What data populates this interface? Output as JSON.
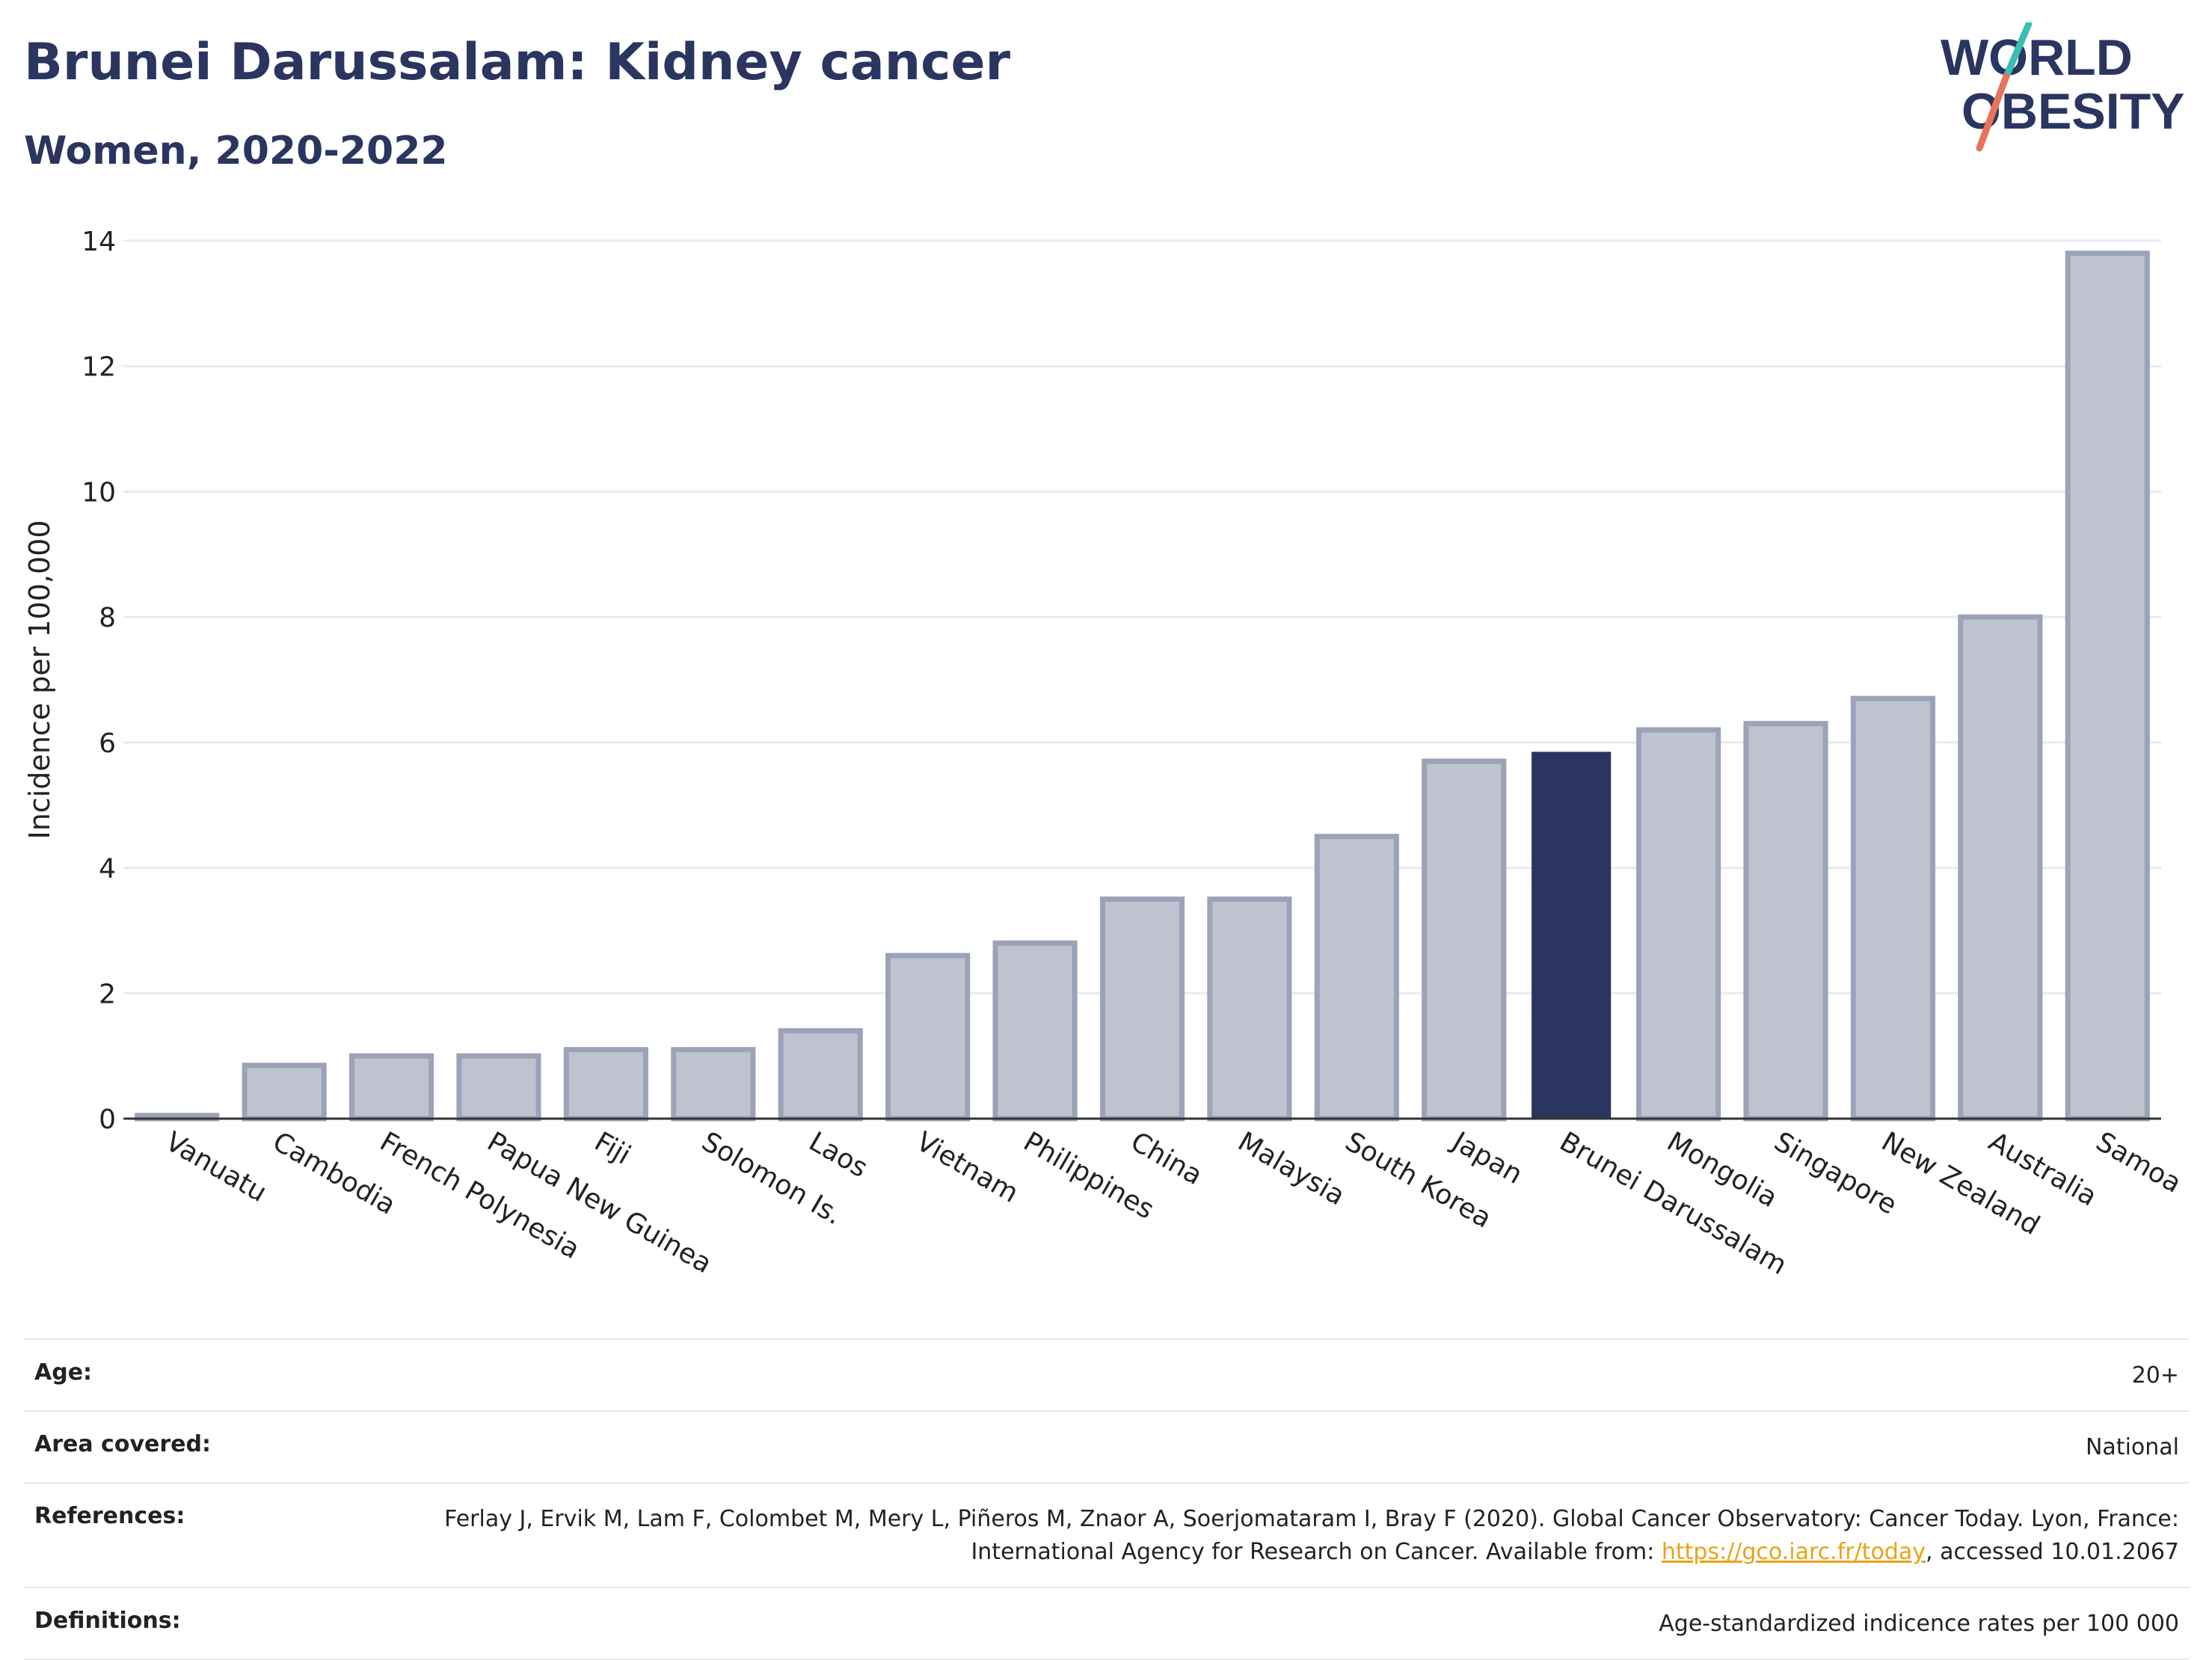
{
  "header": {
    "title": "Brunei Darussalam: Kidney cancer",
    "subtitle": "Women, 2020-2022",
    "logo_text": "WORLD OBESITY"
  },
  "colors": {
    "title": "#2a3560",
    "highlight_bar": "#2a3560",
    "other_bar_fill": "#bfc3d0",
    "other_bar_stroke": "#9ca2b8",
    "logo_teal": "#3bbfb0",
    "logo_coral": "#e8735a",
    "link": "#e8a317"
  },
  "chart_data": {
    "type": "bar",
    "ylabel": "Incidence per 100,000",
    "xlabel": "",
    "ylim": [
      0,
      14
    ],
    "yticks": [
      0,
      2,
      4,
      6,
      8,
      10,
      12,
      14
    ],
    "grid": true,
    "highlight": "Brunei Darussalam",
    "categories": [
      "Vanuatu",
      "Cambodia",
      "French Polynesia",
      "Papua New Guinea",
      "Fiji",
      "Solomon Is.",
      "Laos",
      "Vietnam",
      "Philippines",
      "China",
      "Malaysia",
      "South Korea",
      "Japan",
      "Brunei Darussalam",
      "Mongolia",
      "Singapore",
      "New Zealand",
      "Australia",
      "Samoa"
    ],
    "values": [
      0.05,
      0.85,
      1.0,
      1.0,
      1.1,
      1.1,
      1.4,
      2.6,
      2.8,
      3.5,
      3.5,
      4.5,
      5.7,
      5.85,
      6.2,
      6.3,
      6.7,
      8.0,
      13.8
    ]
  },
  "info": {
    "age_label": "Age:",
    "age_value": "20+",
    "area_label": "Area covered:",
    "area_value": "National",
    "references_label": "References:",
    "references_text_1": "Ferlay J, Ervik M, Lam F, Colombet M, Mery L, Piñeros M, Znaor A, Soerjomataram I, Bray F (2020). Global Cancer Observatory: Cancer Today. Lyon, France: International Agency for Research on Cancer. Available from: ",
    "references_link": "https://gco.iarc.fr/today",
    "references_text_2": ", accessed 10.01.2067",
    "definitions_label": "Definitions:",
    "definitions_value": "Age-standardized indicence rates per 100 000"
  }
}
